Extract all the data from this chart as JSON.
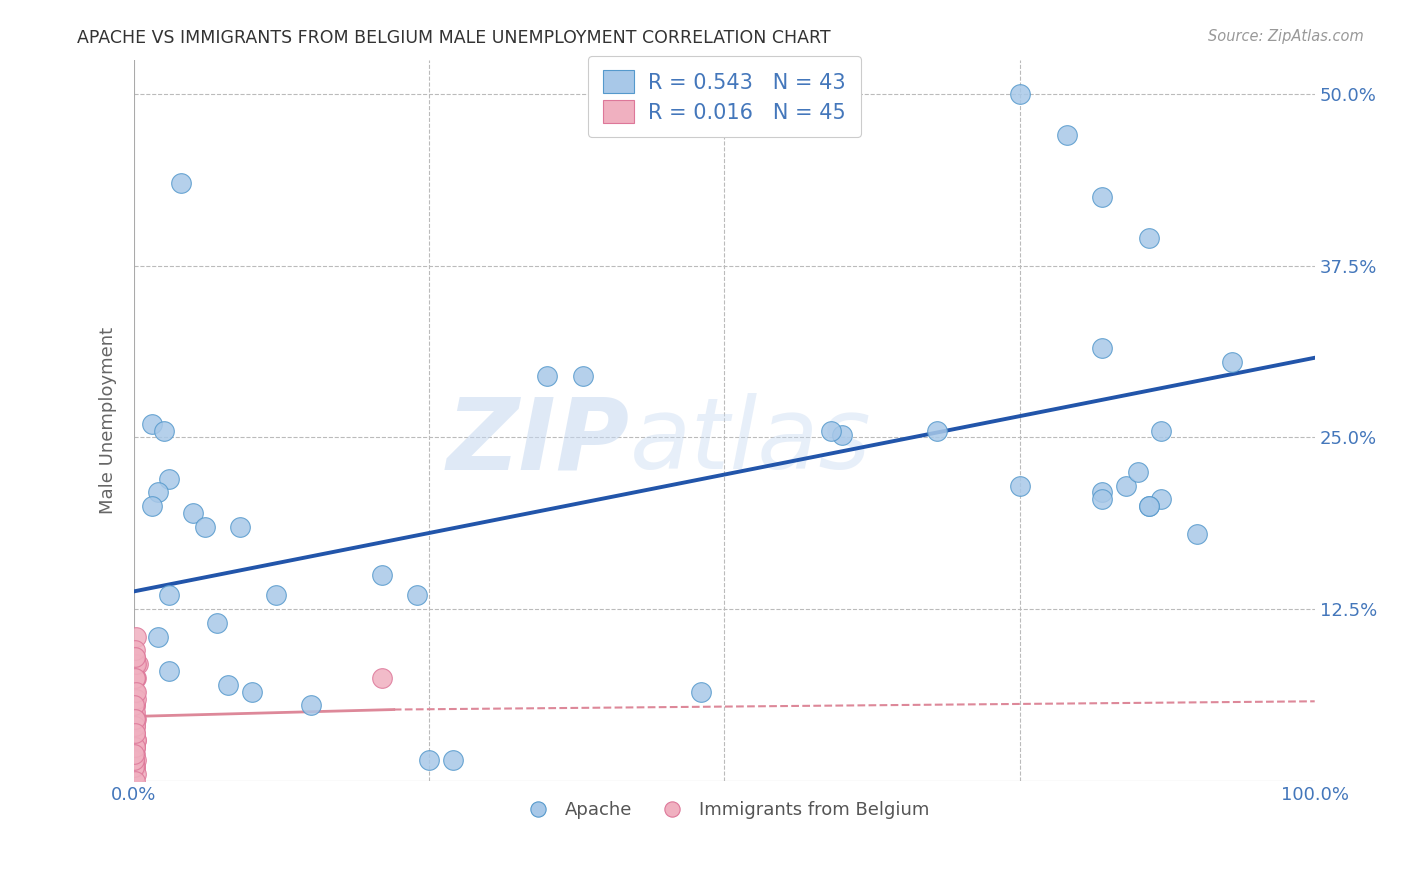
{
  "title": "APACHE VS IMMIGRANTS FROM BELGIUM MALE UNEMPLOYMENT CORRELATION CHART",
  "source": "Source: ZipAtlas.com",
  "ylabel": "Male Unemployment",
  "watermark_zip": "ZIP",
  "watermark_atlas": "atlas",
  "xlim": [
    0,
    1.0
  ],
  "ylim": [
    0,
    0.525
  ],
  "xtick_positions": [
    0.0,
    0.25,
    0.5,
    0.75,
    1.0
  ],
  "xticklabels": [
    "0.0%",
    "",
    "",
    "",
    "100.0%"
  ],
  "ytick_positions": [
    0.125,
    0.25,
    0.375,
    0.5
  ],
  "ytick_labels": [
    "12.5%",
    "25.0%",
    "37.5%",
    "50.0%"
  ],
  "blue_R": "0.543",
  "blue_N": "43",
  "pink_R": "0.016",
  "pink_N": "45",
  "blue_scatter_color": "#a8c8e8",
  "blue_edge_color": "#5599cc",
  "pink_scatter_color": "#f0b0c0",
  "pink_edge_color": "#dd7799",
  "blue_line_color": "#2255aa",
  "pink_line_color": "#dd8899",
  "title_color": "#333333",
  "tick_color": "#4477bb",
  "grid_color": "#bbbbbb",
  "legend_label_color": "#4477bb",
  "bottom_legend_color": "#555555",
  "blue_scatter_x": [
    0.04,
    0.35,
    0.38,
    0.015,
    0.025,
    0.03,
    0.02,
    0.015,
    0.05,
    0.06,
    0.09,
    0.12,
    0.6,
    0.75,
    0.79,
    0.82,
    0.86,
    0.82,
    0.87,
    0.84,
    0.75,
    0.82,
    0.87,
    0.82,
    0.86,
    0.9,
    0.86,
    0.68,
    0.02,
    0.21,
    0.24,
    0.03,
    0.08,
    0.1,
    0.15,
    0.25,
    0.27,
    0.48,
    0.03,
    0.07,
    0.59,
    0.85,
    0.93
  ],
  "blue_scatter_y": [
    0.435,
    0.295,
    0.295,
    0.26,
    0.255,
    0.22,
    0.21,
    0.2,
    0.195,
    0.185,
    0.185,
    0.135,
    0.252,
    0.5,
    0.47,
    0.425,
    0.395,
    0.315,
    0.255,
    0.215,
    0.215,
    0.21,
    0.205,
    0.205,
    0.2,
    0.18,
    0.2,
    0.255,
    0.105,
    0.15,
    0.135,
    0.08,
    0.07,
    0.065,
    0.055,
    0.015,
    0.015,
    0.065,
    0.135,
    0.115,
    0.255,
    0.225,
    0.305
  ],
  "pink_scatter_x": [
    0.0,
    0.002,
    0.001,
    0.003,
    0.001,
    0.0,
    0.001,
    0.002,
    0.001,
    0.0,
    0.001,
    0.002,
    0.001,
    0.001,
    0.002,
    0.001,
    0.0,
    0.002,
    0.001,
    0.001,
    0.001,
    0.002,
    0.001,
    0.0,
    0.001,
    0.001,
    0.002,
    0.001,
    0.001,
    0.002,
    0.001,
    0.0,
    0.001,
    0.21,
    0.001,
    0.002,
    0.001,
    0.0,
    0.001,
    0.001,
    0.002,
    0.0,
    0.001,
    0.001,
    0.0
  ],
  "pink_scatter_y": [
    0.065,
    0.105,
    0.075,
    0.085,
    0.09,
    0.06,
    0.055,
    0.075,
    0.085,
    0.05,
    0.04,
    0.03,
    0.02,
    0.01,
    0.015,
    0.025,
    0.035,
    0.045,
    0.055,
    0.065,
    0.075,
    0.085,
    0.095,
    0.015,
    0.01,
    0.025,
    0.005,
    0.035,
    0.05,
    0.06,
    0.045,
    0.01,
    0.075,
    0.075,
    0.09,
    0.03,
    0.04,
    0.015,
    0.025,
    0.0,
    0.065,
    0.055,
    0.045,
    0.035,
    0.02
  ],
  "blue_line_x0": 0.0,
  "blue_line_y0": 0.138,
  "blue_line_x1": 1.0,
  "blue_line_y1": 0.308,
  "pink_line_x0": 0.0,
  "pink_line_y0": 0.047,
  "pink_line_solid_x1": 0.22,
  "pink_line_solid_y1": 0.052,
  "pink_line_x1": 1.0,
  "pink_line_y1": 0.058
}
